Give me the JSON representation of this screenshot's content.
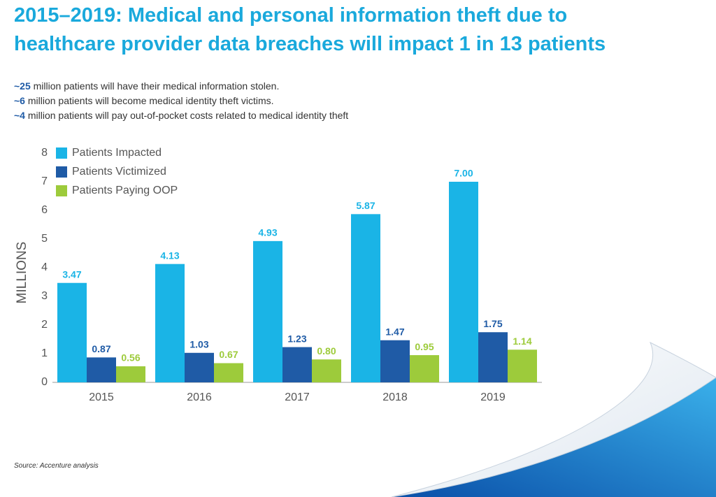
{
  "title": "2015–2019: Medical and personal information theft due to healthcare provider data breaches will impact 1 in 13 patients",
  "bullets": [
    {
      "emphasis": "~25",
      "text": "million patients will have their medical information stolen."
    },
    {
      "emphasis": "~6",
      "text": "million patients will become medical identity theft victims."
    },
    {
      "emphasis": "~4",
      "text": "million patients will pay out-of-pocket costs related to medical identity theft"
    }
  ],
  "source": "Source: Accenture analysis",
  "chart_data": {
    "type": "bar",
    "categories": [
      "2015",
      "2016",
      "2017",
      "2018",
      "2019"
    ],
    "series": [
      {
        "name": "Patients Impacted",
        "color": "#1ab4e6",
        "values": [
          3.47,
          4.13,
          4.93,
          5.87,
          7
        ],
        "value_labels": [
          "3.47",
          "4.13",
          "4.93",
          "5.87",
          "7.00"
        ]
      },
      {
        "name": "Patients Victimized",
        "color": "#1f5ba6",
        "values": [
          0.87,
          1.03,
          1.23,
          1.47,
          1.75
        ],
        "value_labels": [
          "0.87",
          "1.03",
          "1.23",
          "1.47",
          "1.75"
        ]
      },
      {
        "name": "Patients Paying OOP",
        "color": "#9dcb3b",
        "values": [
          0.56,
          0.67,
          0.8,
          0.95,
          1.14
        ],
        "value_labels": [
          "0.56",
          "0.67",
          "0.80",
          "0.95",
          "1.14"
        ]
      }
    ],
    "ylabel": "MILLIONS",
    "ylim": [
      0,
      8
    ],
    "yticks": [
      0,
      1,
      2,
      3,
      4,
      5,
      6,
      7,
      8
    ],
    "grid": false,
    "legend": "top-left"
  }
}
